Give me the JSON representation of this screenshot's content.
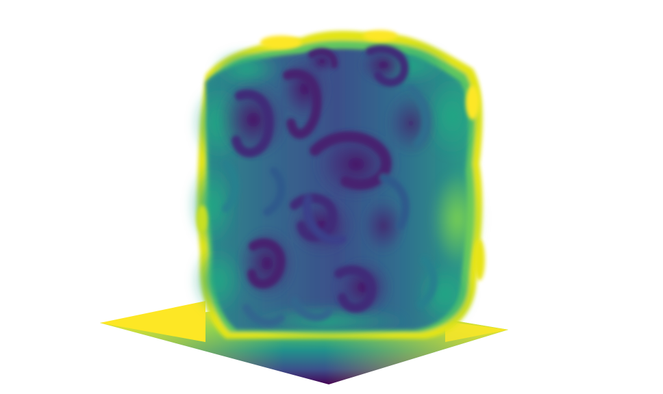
{
  "scene": {
    "subject": "depth-rendered-sculpture",
    "colormap": "viridis",
    "colors": {
      "background": "#ffffff",
      "near": "#440154",
      "near_mid": "#3b528b",
      "mid": "#21918c",
      "far_mid": "#5ec962",
      "far": "#fde725"
    }
  }
}
